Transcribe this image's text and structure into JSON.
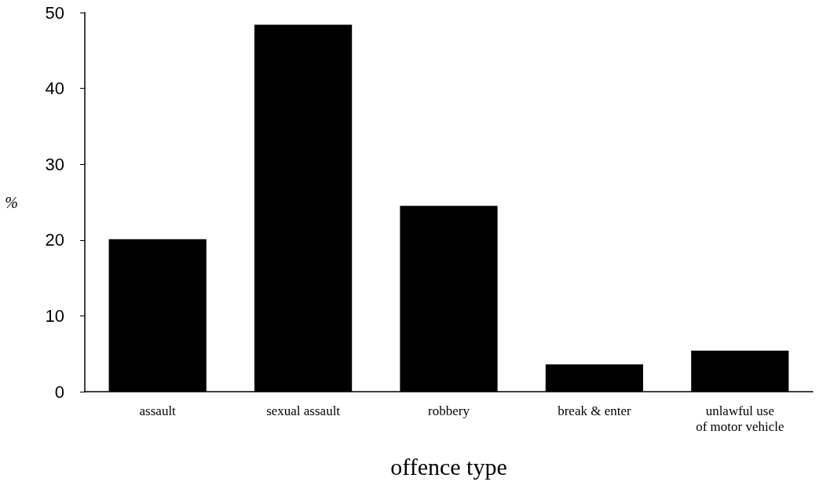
{
  "chart_data": {
    "type": "bar",
    "xlabel": "offence type",
    "ylabel": "%",
    "categories": [
      "assault",
      "sexual assault",
      "robbery",
      "break & enter",
      "unlawful use\nof motor vehicle"
    ],
    "values": [
      20.1,
      48.4,
      24.5,
      3.6,
      5.4
    ],
    "color": "#000000",
    "ylim": [
      0,
      50
    ],
    "yticks": [
      0,
      10,
      20,
      30,
      40,
      50
    ],
    "grid": false
  }
}
